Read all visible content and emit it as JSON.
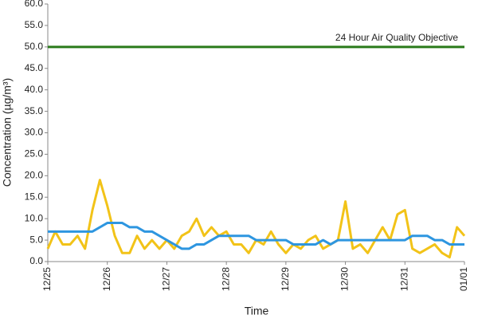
{
  "chart_data": {
    "type": "line",
    "y_label": "Concentration (µg/m³)",
    "x_label": "Time",
    "categories": [
      "12/25",
      null,
      null,
      null,
      null,
      null,
      null,
      null,
      "12/26",
      null,
      null,
      null,
      null,
      null,
      null,
      null,
      "12/27",
      null,
      null,
      null,
      null,
      null,
      null,
      null,
      "12/28",
      null,
      null,
      null,
      null,
      null,
      null,
      null,
      "12/29",
      null,
      null,
      null,
      null,
      null,
      null,
      null,
      "12/30",
      null,
      null,
      null,
      null,
      null,
      null,
      null,
      "12/31",
      null,
      null,
      null,
      null,
      null,
      null,
      null,
      "01/01"
    ],
    "series": [
      {
        "color": "#f2c318",
        "values": [
          3,
          7,
          4,
          4,
          6,
          3,
          12,
          19,
          13,
          6,
          2,
          2,
          6,
          3,
          5,
          3,
          5,
          3,
          6,
          7,
          10,
          6,
          8,
          6,
          7,
          4,
          4,
          2,
          5,
          4,
          7,
          4,
          2,
          4,
          3,
          5,
          6,
          3,
          4,
          5,
          14,
          3,
          4,
          2,
          5,
          8,
          5,
          11,
          12,
          3,
          2,
          3,
          4,
          2,
          1,
          8,
          6
        ]
      },
      {
        "color": "#2e96e0",
        "values": [
          7,
          7,
          7,
          7,
          7,
          7,
          7,
          8,
          9,
          9,
          9,
          8,
          8,
          7,
          7,
          6,
          5,
          4,
          3,
          3,
          4,
          4,
          5,
          6,
          6,
          6,
          6,
          6,
          5,
          5,
          5,
          5,
          5,
          4,
          4,
          4,
          4,
          5,
          4,
          5,
          5,
          5,
          5,
          5,
          5,
          5,
          5,
          5,
          5,
          6,
          6,
          6,
          5,
          5,
          4,
          4,
          4
        ]
      }
    ],
    "threshold": {
      "value": 50,
      "label": "24 Hour Air Quality Objective",
      "color": "#2a7a1a"
    },
    "ylim": [
      0,
      60
    ],
    "yticks": [
      {
        "value": 0,
        "label": "0.0"
      },
      {
        "value": 5,
        "label": "5.0"
      },
      {
        "value": 10,
        "label": "10.0"
      },
      {
        "value": 15,
        "label": "15.0"
      },
      {
        "value": 20,
        "label": "20.0"
      },
      {
        "value": 25,
        "label": "25.0"
      },
      {
        "value": 30,
        "label": "30.0"
      },
      {
        "value": 35,
        "label": "35.0"
      },
      {
        "value": 40,
        "label": "40.0"
      },
      {
        "value": 45,
        "label": "45.0"
      },
      {
        "value": 50,
        "label": "50.0"
      },
      {
        "value": 55,
        "label": "55.0"
      },
      {
        "value": 60,
        "label": "60.0"
      }
    ],
    "grid": false
  }
}
